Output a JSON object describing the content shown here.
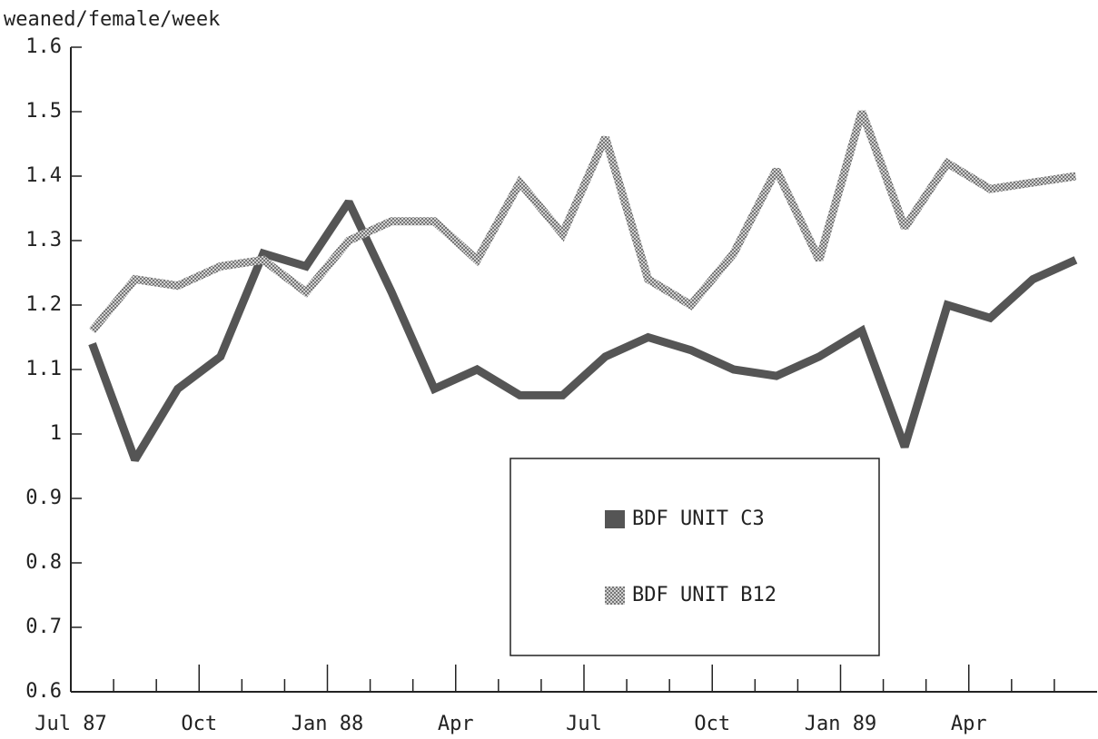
{
  "chart_data": {
    "type": "line",
    "y_label": "weaned/female/week",
    "categories": [
      "Jul 87",
      null,
      null,
      "Oct",
      null,
      null,
      "Jan 88",
      null,
      null,
      "Apr",
      null,
      null,
      "Jul",
      null,
      null,
      "Oct",
      null,
      null,
      "Jan 89",
      null,
      null,
      "Apr",
      null,
      null
    ],
    "series": [
      {
        "name": "BDF UNIT C3",
        "color": "#555555",
        "values": [
          1.14,
          0.96,
          1.07,
          1.12,
          1.28,
          1.26,
          1.36,
          1.22,
          1.07,
          1.1,
          1.06,
          1.06,
          1.12,
          1.15,
          1.13,
          1.1,
          1.09,
          1.12,
          1.16,
          0.98,
          1.2,
          1.18,
          1.24,
          1.27
        ]
      },
      {
        "name": "BDF UNIT B12",
        "color": "#a0a0a0",
        "values": [
          1.16,
          1.24,
          1.23,
          1.26,
          1.27,
          1.22,
          1.3,
          1.33,
          1.33,
          1.27,
          1.39,
          1.31,
          1.46,
          1.24,
          1.2,
          1.28,
          1.41,
          1.27,
          1.5,
          1.32,
          1.42,
          1.38,
          1.39,
          1.4
        ]
      }
    ],
    "ylim": [
      0.6,
      1.6
    ],
    "yticks": [
      0.6,
      0.7,
      0.8,
      0.9,
      1,
      1.1,
      1.2,
      1.3,
      1.4,
      1.5,
      1.6
    ],
    "legend": "center"
  }
}
